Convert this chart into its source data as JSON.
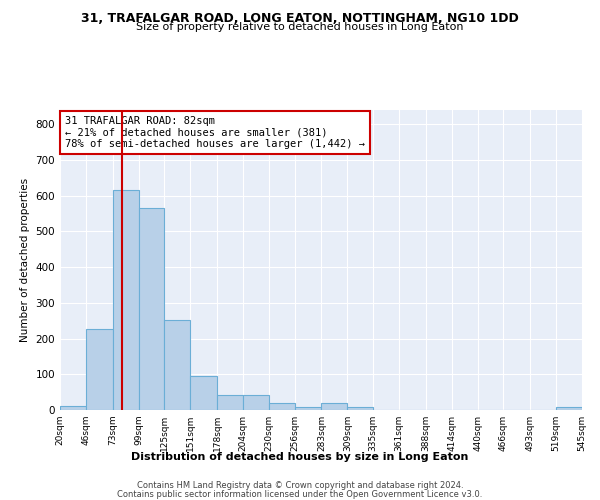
{
  "title": "31, TRAFALGAR ROAD, LONG EATON, NOTTINGHAM, NG10 1DD",
  "subtitle": "Size of property relative to detached houses in Long Eaton",
  "xlabel": "Distribution of detached houses by size in Long Eaton",
  "ylabel": "Number of detached properties",
  "bar_color": "#b8d0e8",
  "bar_edge_color": "#6baed6",
  "bg_color": "#e8eef8",
  "grid_color": "#ffffff",
  "bin_edges": [
    20,
    46,
    73,
    99,
    125,
    151,
    178,
    204,
    230,
    256,
    283,
    309,
    335,
    361,
    388,
    414,
    440,
    466,
    493,
    519,
    545
  ],
  "bar_heights": [
    10,
    228,
    617,
    566,
    253,
    96,
    42,
    42,
    20,
    8,
    20,
    8,
    0,
    0,
    0,
    0,
    0,
    0,
    0,
    8
  ],
  "property_size": 82,
  "vline_color": "#cc0000",
  "annotation_text": "31 TRAFALGAR ROAD: 82sqm\n← 21% of detached houses are smaller (381)\n78% of semi-detached houses are larger (1,442) →",
  "annotation_box_color": "#ffffff",
  "annotation_box_edge_color": "#cc0000",
  "footer1": "Contains HM Land Registry data © Crown copyright and database right 2024.",
  "footer2": "Contains public sector information licensed under the Open Government Licence v3.0.",
  "ylim": [
    0,
    840
  ],
  "yticks": [
    0,
    100,
    200,
    300,
    400,
    500,
    600,
    700,
    800
  ]
}
